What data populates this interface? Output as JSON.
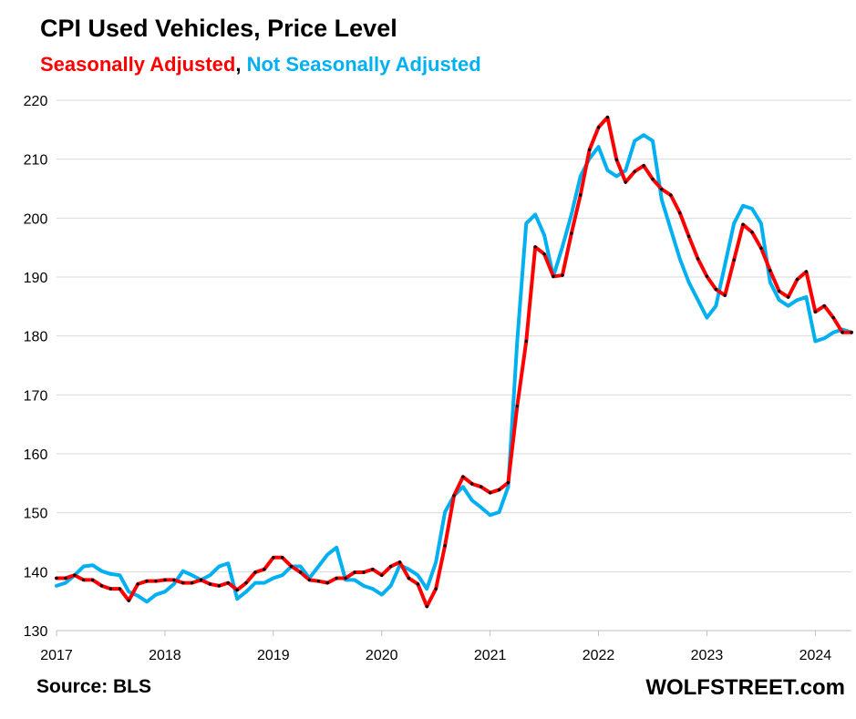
{
  "chart_data": {
    "type": "line",
    "title": "CPI Used Vehicles, Price Level",
    "subtitle_parts": {
      "sa": "Seasonally Adjusted",
      "separator": ", ",
      "nsa": "Not Seasonally Adjusted"
    },
    "ylim": [
      130,
      220
    ],
    "yticks": [
      "130",
      "140",
      "150",
      "160",
      "170",
      "180",
      "190",
      "200",
      "210",
      "220"
    ],
    "xticks": [
      "2017",
      "2018",
      "2019",
      "2020",
      "2021",
      "2022",
      "2023",
      "2024"
    ],
    "x_start": "2017-01",
    "x_end": "2024-04",
    "grid": true,
    "series": [
      {
        "name": "Not Seasonally Adjusted",
        "color": "#00b0f0",
        "values": [
          137.6,
          138.1,
          139.4,
          140.9,
          141.1,
          140.1,
          139.6,
          139.4,
          136.6,
          135.9,
          134.9,
          136.1,
          136.6,
          137.9,
          140.1,
          139.4,
          138.6,
          139.4,
          140.9,
          141.4,
          135.4,
          136.6,
          138.1,
          138.1,
          138.9,
          139.4,
          140.9,
          140.9,
          138.9,
          140.9,
          142.9,
          144.1,
          138.6,
          138.6,
          137.6,
          137.1,
          136.1,
          137.6,
          141.1,
          140.4,
          139.4,
          137.1,
          141.6,
          150.1,
          152.9,
          154.4,
          152.1,
          150.9,
          149.6,
          150.1,
          154.4,
          179.1,
          199.1,
          200.6,
          197.1,
          190.1,
          195.1,
          200.6,
          207.1,
          210.1,
          212.1,
          208.1,
          207.1,
          208.1,
          213.1,
          214.1,
          213.1,
          203.1,
          198.1,
          193.1,
          189.1,
          186.1,
          183.1,
          185.1,
          192.1,
          199.1,
          202.1,
          201.6,
          199.1,
          189.1,
          186.1,
          185.1,
          186.1,
          186.6,
          179.1,
          179.6,
          180.6,
          181.1,
          180.6
        ]
      },
      {
        "name": "Seasonally Adjusted",
        "color": "#ff0000",
        "values": [
          138.9,
          138.9,
          139.4,
          138.6,
          138.6,
          137.6,
          137.1,
          137.1,
          135.1,
          137.9,
          138.4,
          138.4,
          138.6,
          138.6,
          138.1,
          138.1,
          138.6,
          137.9,
          137.6,
          138.1,
          136.9,
          138.1,
          139.9,
          140.4,
          142.4,
          142.4,
          140.9,
          139.9,
          138.6,
          138.4,
          138.1,
          138.9,
          138.9,
          139.9,
          139.9,
          140.4,
          139.4,
          140.9,
          141.6,
          138.9,
          137.9,
          134.1,
          137.1,
          144.4,
          152.9,
          156.1,
          154.9,
          154.4,
          153.4,
          153.9,
          155.1,
          168.1,
          179.1,
          195.1,
          193.9,
          190.1,
          190.3,
          197.4,
          203.9,
          211.6,
          215.4,
          217.1,
          209.9,
          206.1,
          207.9,
          208.9,
          206.6,
          204.9,
          203.9,
          200.9,
          196.9,
          193.1,
          190.1,
          187.9,
          186.9,
          192.9,
          198.9,
          197.6,
          194.9,
          191.1,
          187.6,
          186.6,
          189.6,
          190.9,
          184.1,
          185.1,
          183.1,
          180.6,
          180.6
        ]
      }
    ]
  },
  "footer": {
    "source": "Source: BLS",
    "brand": "WOLFSTREET.com"
  }
}
